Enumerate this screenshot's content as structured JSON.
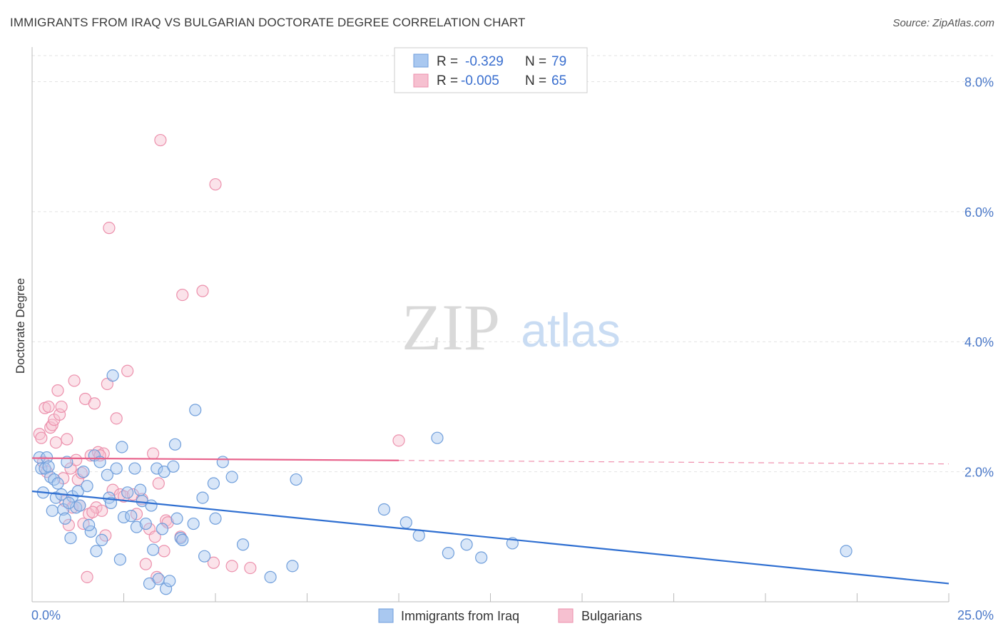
{
  "header": {
    "title": "IMMIGRANTS FROM IRAQ VS BULGARIAN DOCTORATE DEGREE CORRELATION CHART",
    "source": "Source: ZipAtlas.com"
  },
  "watermark": {
    "zip": "ZIP",
    "atlas": "atlas"
  },
  "colors": {
    "blue_fill": "#a9c8f0",
    "blue_stroke": "#6f9edb",
    "blue_line": "#2f6fd1",
    "pink_fill": "#f6c0d0",
    "pink_stroke": "#ec90ac",
    "pink_line": "#e8638c",
    "tick_text": "#4a78c8"
  },
  "legend_box": {
    "rows": [
      {
        "r_label": "R =",
        "r_value": "-0.329",
        "n_label": "N =",
        "n_value": "79"
      },
      {
        "r_label": "R =",
        "r_value": "-0.005",
        "n_label": "N =",
        "n_value": "65"
      }
    ]
  },
  "chart_data": {
    "type": "scatter",
    "title": "IMMIGRANTS FROM IRAQ VS BULGARIAN DOCTORATE DEGREE CORRELATION CHART",
    "xlabel": "",
    "ylabel": "Doctorate Degree",
    "xlim": [
      0,
      25
    ],
    "ylim": [
      0,
      8.4
    ],
    "x_tick_labels": [
      "0.0%",
      "25.0%"
    ],
    "y_ticks": [
      2,
      4,
      6,
      8
    ],
    "y_tick_labels": [
      "2.0%",
      "4.0%",
      "6.0%",
      "8.0%"
    ],
    "grid": true,
    "legend_position": "bottom",
    "series": [
      {
        "name": "Immigrants from Iraq",
        "color": "#6f9edb",
        "trend": {
          "x": [
            0,
            25
          ],
          "y": [
            1.7,
            0.28
          ],
          "dashed_from": null
        },
        "points": [
          [
            0.2,
            2.22
          ],
          [
            0.25,
            2.05
          ],
          [
            0.3,
            1.68
          ],
          [
            0.35,
            2.05
          ],
          [
            0.4,
            2.22
          ],
          [
            0.5,
            1.92
          ],
          [
            0.6,
            1.88
          ],
          [
            0.55,
            1.4
          ],
          [
            0.65,
            1.6
          ],
          [
            0.7,
            1.82
          ],
          [
            0.8,
            1.65
          ],
          [
            0.85,
            1.42
          ],
          [
            0.9,
            1.28
          ],
          [
            0.95,
            2.15
          ],
          [
            1.05,
            0.98
          ],
          [
            1.1,
            1.62
          ],
          [
            1.2,
            1.45
          ],
          [
            1.25,
            1.7
          ],
          [
            1.3,
            1.48
          ],
          [
            1.4,
            2.0
          ],
          [
            1.5,
            1.78
          ],
          [
            1.6,
            1.08
          ],
          [
            1.7,
            2.25
          ],
          [
            1.75,
            0.78
          ],
          [
            1.85,
            2.15
          ],
          [
            1.9,
            0.95
          ],
          [
            2.05,
            1.95
          ],
          [
            2.1,
            1.6
          ],
          [
            2.15,
            1.52
          ],
          [
            2.2,
            3.48
          ],
          [
            2.3,
            2.05
          ],
          [
            2.4,
            0.65
          ],
          [
            2.45,
            2.38
          ],
          [
            2.5,
            1.3
          ],
          [
            2.6,
            1.68
          ],
          [
            2.7,
            1.32
          ],
          [
            2.8,
            2.05
          ],
          [
            2.85,
            1.15
          ],
          [
            3.0,
            1.55
          ],
          [
            3.1,
            1.2
          ],
          [
            3.2,
            0.28
          ],
          [
            3.3,
            0.8
          ],
          [
            3.4,
            2.05
          ],
          [
            3.45,
            0.35
          ],
          [
            3.55,
            1.12
          ],
          [
            3.6,
            2.0
          ],
          [
            3.65,
            0.2
          ],
          [
            3.75,
            0.32
          ],
          [
            3.85,
            2.08
          ],
          [
            3.9,
            2.42
          ],
          [
            3.95,
            1.28
          ],
          [
            4.05,
            0.98
          ],
          [
            4.1,
            0.95
          ],
          [
            4.4,
            1.2
          ],
          [
            4.45,
            2.95
          ],
          [
            4.65,
            1.6
          ],
          [
            4.7,
            0.7
          ],
          [
            4.95,
            1.82
          ],
          [
            5.0,
            1.28
          ],
          [
            5.2,
            2.15
          ],
          [
            5.45,
            1.92
          ],
          [
            5.75,
            0.88
          ],
          [
            6.5,
            0.38
          ],
          [
            7.1,
            0.55
          ],
          [
            7.2,
            1.88
          ],
          [
            9.6,
            1.42
          ],
          [
            10.2,
            1.22
          ],
          [
            10.55,
            1.02
          ],
          [
            11.05,
            2.52
          ],
          [
            11.35,
            0.75
          ],
          [
            11.85,
            0.88
          ],
          [
            12.25,
            0.68
          ],
          [
            13.1,
            0.9
          ],
          [
            22.2,
            0.78
          ],
          [
            0.45,
            2.08
          ],
          [
            1.0,
            1.52
          ],
          [
            2.95,
            1.72
          ],
          [
            3.25,
            1.48
          ],
          [
            1.55,
            1.18
          ]
        ]
      },
      {
        "name": "Bulgarians",
        "color": "#ec90ac",
        "trend": {
          "x": [
            0,
            25
          ],
          "y": [
            2.21,
            2.12
          ],
          "dashed_from": 10
        },
        "points": [
          [
            0.2,
            2.58
          ],
          [
            0.25,
            2.52
          ],
          [
            0.3,
            2.15
          ],
          [
            0.35,
            2.98
          ],
          [
            0.4,
            2.0
          ],
          [
            0.45,
            3.0
          ],
          [
            0.5,
            2.68
          ],
          [
            0.55,
            2.72
          ],
          [
            0.6,
            2.8
          ],
          [
            0.65,
            2.45
          ],
          [
            0.7,
            3.25
          ],
          [
            0.75,
            2.88
          ],
          [
            0.8,
            3.0
          ],
          [
            0.85,
            1.9
          ],
          [
            0.9,
            1.55
          ],
          [
            0.95,
            2.5
          ],
          [
            1.0,
            1.18
          ],
          [
            1.05,
            2.05
          ],
          [
            1.1,
            1.45
          ],
          [
            1.15,
            3.4
          ],
          [
            1.2,
            2.18
          ],
          [
            1.25,
            1.88
          ],
          [
            1.3,
            1.48
          ],
          [
            1.35,
            1.98
          ],
          [
            1.4,
            1.2
          ],
          [
            1.45,
            3.12
          ],
          [
            1.5,
            0.38
          ],
          [
            1.55,
            1.35
          ],
          [
            1.6,
            2.25
          ],
          [
            1.7,
            3.05
          ],
          [
            1.75,
            1.45
          ],
          [
            1.8,
            2.3
          ],
          [
            1.9,
            1.4
          ],
          [
            1.95,
            2.28
          ],
          [
            2.0,
            1.02
          ],
          [
            2.05,
            3.35
          ],
          [
            2.1,
            5.75
          ],
          [
            2.2,
            1.72
          ],
          [
            2.3,
            2.82
          ],
          [
            2.4,
            1.65
          ],
          [
            2.5,
            1.62
          ],
          [
            2.6,
            3.55
          ],
          [
            2.75,
            1.65
          ],
          [
            2.85,
            1.35
          ],
          [
            3.0,
            1.58
          ],
          [
            3.1,
            0.58
          ],
          [
            3.2,
            1.12
          ],
          [
            3.3,
            2.28
          ],
          [
            3.35,
            1.0
          ],
          [
            3.4,
            0.38
          ],
          [
            3.45,
            1.82
          ],
          [
            3.5,
            7.1
          ],
          [
            3.6,
            0.78
          ],
          [
            3.65,
            1.25
          ],
          [
            3.7,
            1.22
          ],
          [
            4.05,
            1.0
          ],
          [
            4.1,
            4.72
          ],
          [
            4.65,
            4.78
          ],
          [
            4.95,
            0.6
          ],
          [
            5.0,
            6.42
          ],
          [
            5.45,
            0.55
          ],
          [
            5.95,
            0.52
          ],
          [
            10.0,
            2.48
          ],
          [
            1.65,
            1.38
          ],
          [
            1.85,
            2.25
          ]
        ]
      }
    ]
  }
}
